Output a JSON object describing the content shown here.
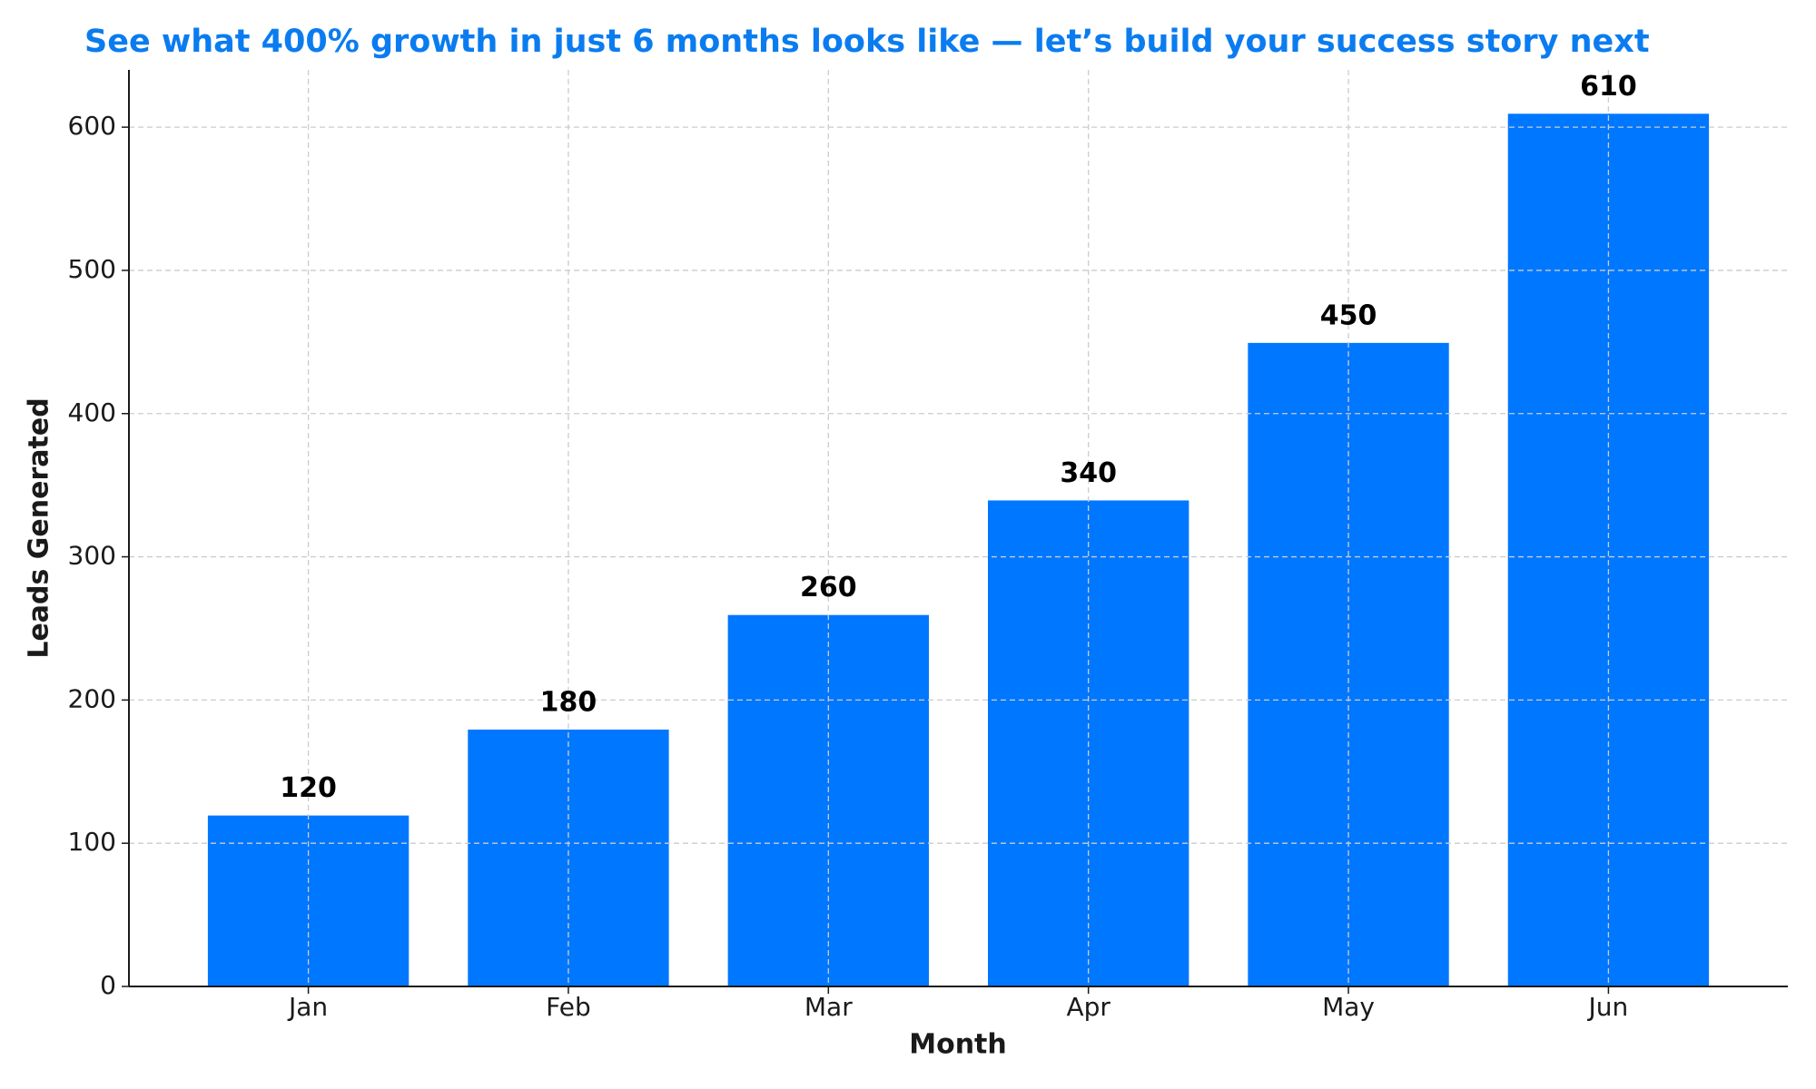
{
  "chart_data": {
    "type": "bar",
    "title": "See what 400% growth in just 6 months looks like — let’s build your success story next",
    "x_label": "Month",
    "y_label": "Leads Generated",
    "categories": [
      "Jan",
      "Feb",
      "Mar",
      "Apr",
      "May",
      "Jun"
    ],
    "values": [
      120,
      180,
      260,
      340,
      450,
      610
    ],
    "color": "#0077ff",
    "ylim": [
      0,
      640
    ],
    "yticks": [
      0,
      100,
      200,
      300,
      400,
      500,
      600
    ],
    "grid": true
  }
}
